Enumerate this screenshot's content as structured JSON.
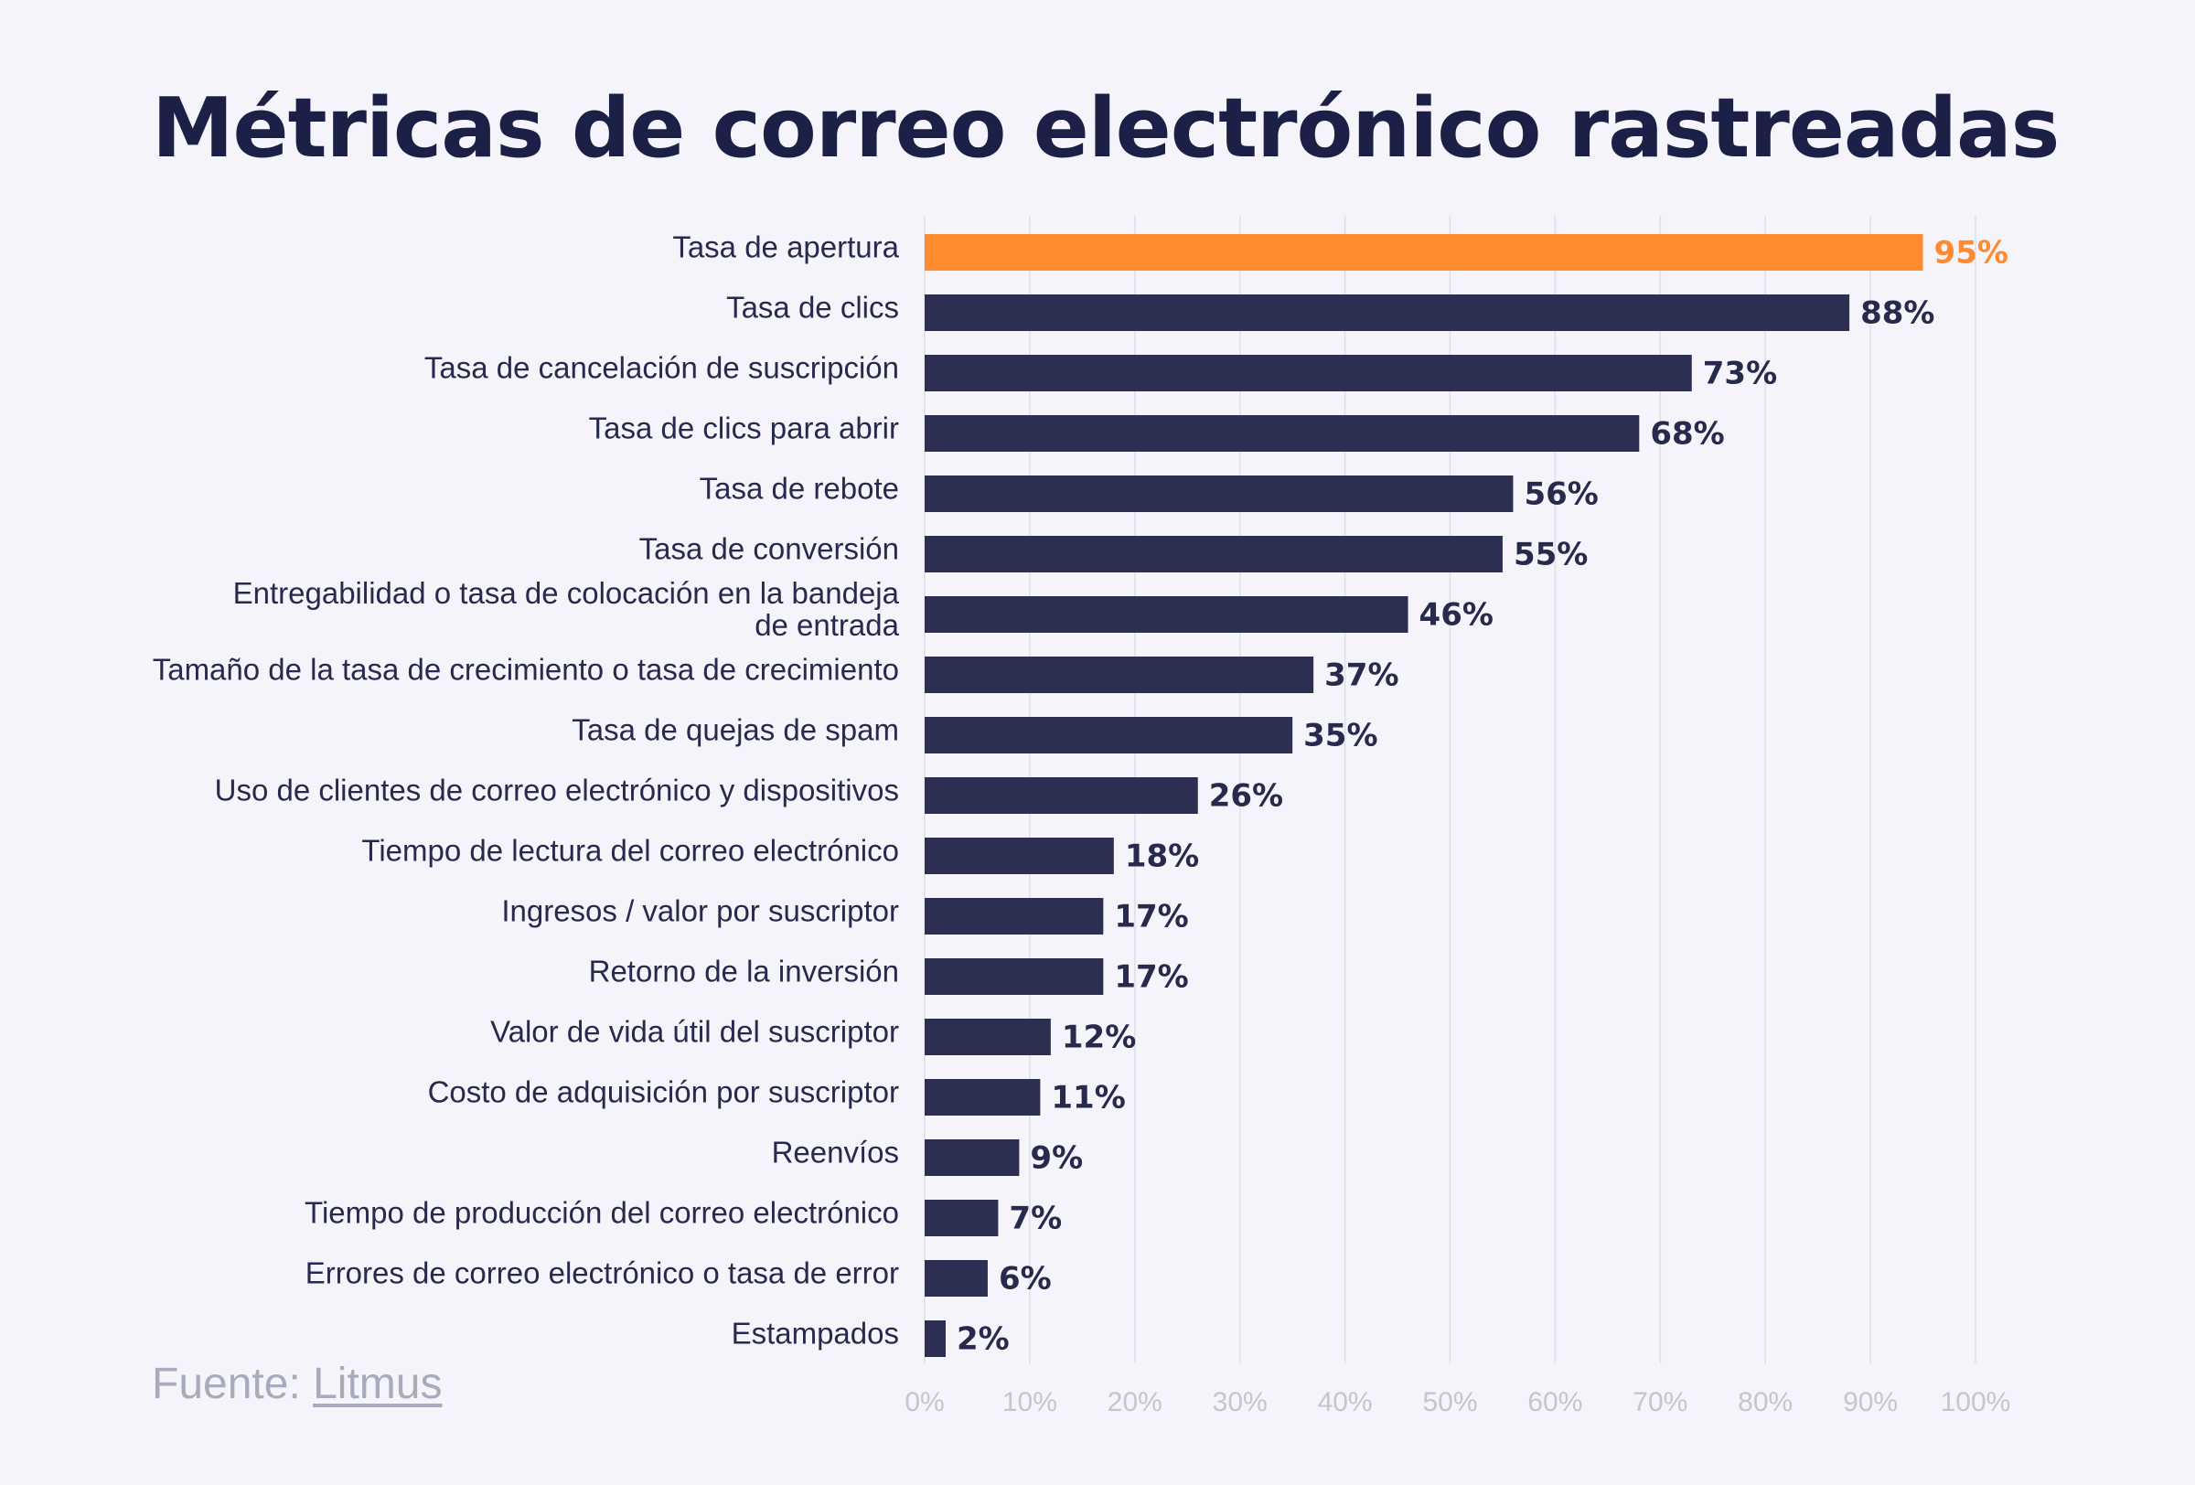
{
  "chart_data": {
    "type": "bar",
    "orientation": "horizontal",
    "title": "Métricas de correo electrónico rastreadas",
    "categories": [
      "Tasa de apertura",
      "Tasa de clics",
      "Tasa de cancelación de suscripción",
      "Tasa de clics para abrir",
      "Tasa de rebote",
      "Tasa de conversión",
      "Entregabilidad o tasa de colocación en la bandeja de entrada",
      "Tamaño de la tasa de crecimiento o tasa de crecimiento",
      "Tasa de quejas de spam",
      "Uso de clientes de correo electrónico y dispositivos",
      "Tiempo de lectura del correo electrónico",
      "Ingresos / valor por suscriptor",
      "Retorno de la inversión",
      "Valor de vida útil del suscriptor",
      "Costo de adquisición por suscriptor",
      "Reenvíos",
      "Tiempo de producción del correo electrónico",
      "Errores de correo electrónico o tasa de error",
      "Estampados"
    ],
    "category_lines": [
      [
        "Tasa de apertura"
      ],
      [
        "Tasa de clics"
      ],
      [
        "Tasa de cancelación de suscripción"
      ],
      [
        "Tasa de clics para abrir"
      ],
      [
        "Tasa de rebote"
      ],
      [
        "Tasa de conversión"
      ],
      [
        "Entregabilidad o tasa de colocación en la bandeja",
        "de entrada"
      ],
      [
        "Tamaño de la tasa de crecimiento o tasa de crecimiento"
      ],
      [
        "Tasa de quejas de spam"
      ],
      [
        "Uso de clientes de correo electrónico y dispositivos"
      ],
      [
        "Tiempo de lectura del correo electrónico"
      ],
      [
        "Ingresos / valor por suscriptor"
      ],
      [
        "Retorno de la inversión"
      ],
      [
        "Valor de vida útil del suscriptor"
      ],
      [
        "Costo de adquisición por suscriptor"
      ],
      [
        "Reenvíos"
      ],
      [
        "Tiempo de producción del correo electrónico"
      ],
      [
        "Errores de correo electrónico o tasa de error"
      ],
      [
        "Estampados"
      ]
    ],
    "values": [
      95,
      88,
      73,
      68,
      56,
      55,
      46,
      37,
      35,
      26,
      18,
      17,
      17,
      12,
      11,
      9,
      7,
      6,
      2
    ],
    "value_labels": [
      "95%",
      "88%",
      "73%",
      "68%",
      "56%",
      "55%",
      "46%",
      "37%",
      "35%",
      "26%",
      "18%",
      "17%",
      "17%",
      "12%",
      "11%",
      "9%",
      "7%",
      "6%",
      "2%"
    ],
    "highlight_index": 0,
    "xlim": [
      0,
      100
    ],
    "xticks": [
      0,
      10,
      20,
      30,
      40,
      50,
      60,
      70,
      80,
      90,
      100
    ],
    "xtick_labels": [
      "0%",
      "10%",
      "20%",
      "30%",
      "40%",
      "50%",
      "60%",
      "70%",
      "80%",
      "90%",
      "100%"
    ],
    "grid": true,
    "colors": {
      "bar": "#2d2f52",
      "highlight": "#ff8a30",
      "grid": "#dedfe8",
      "tick": "#c3c5d3"
    }
  },
  "source": {
    "prefix": "Fuente: ",
    "link_text": "Litmus"
  }
}
